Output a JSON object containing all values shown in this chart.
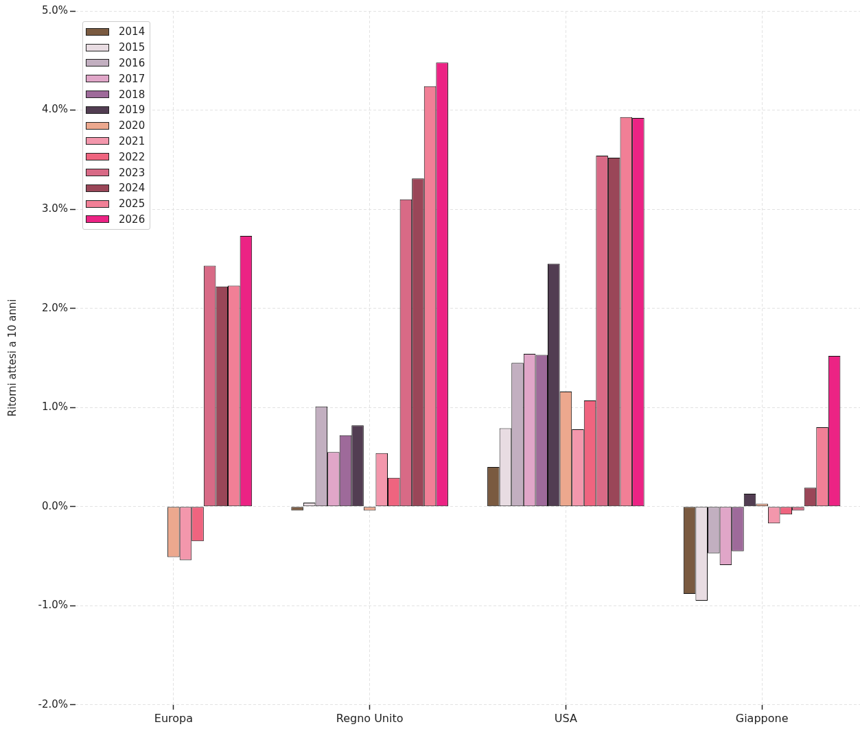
{
  "chart_data": {
    "type": "bar",
    "ylabel": "Ritorni attesi a 10 anni",
    "categories": [
      "Europa",
      "Regno Unito",
      "USA",
      "Giappone"
    ],
    "series": [
      {
        "name": "2014",
        "color": "#7a5a40",
        "values": [
          0,
          -0.04,
          0.4,
          -0.88
        ]
      },
      {
        "name": "2015",
        "color": "#e8dce2",
        "values": [
          0,
          0.04,
          0.79,
          -0.95
        ]
      },
      {
        "name": "2016",
        "color": "#c2afc0",
        "values": [
          0,
          1.01,
          1.45,
          -0.47
        ]
      },
      {
        "name": "2017",
        "color": "#e0a6c8",
        "values": [
          0,
          0.55,
          1.54,
          -0.59
        ]
      },
      {
        "name": "2018",
        "color": "#9e6a9a",
        "values": [
          0,
          0.72,
          1.53,
          -0.45
        ]
      },
      {
        "name": "2019",
        "color": "#523d52",
        "values": [
          0,
          0.82,
          2.45,
          0.13
        ]
      },
      {
        "name": "2020",
        "color": "#eca88e",
        "values": [
          -0.51,
          -0.04,
          1.16,
          0.03
        ]
      },
      {
        "name": "2021",
        "color": "#f397ac",
        "values": [
          -0.54,
          0.54,
          0.78,
          -0.17
        ]
      },
      {
        "name": "2022",
        "color": "#ef647f",
        "values": [
          -0.35,
          0.29,
          1.07,
          -0.08
        ]
      },
      {
        "name": "2023",
        "color": "#d86a86",
        "values": [
          2.43,
          3.1,
          3.54,
          -0.04
        ]
      },
      {
        "name": "2024",
        "color": "#9a4658",
        "values": [
          2.22,
          3.31,
          3.52,
          0.19
        ]
      },
      {
        "name": "2025",
        "color": "#f17f96",
        "values": [
          2.23,
          4.24,
          3.93,
          0.8
        ]
      },
      {
        "name": "2026",
        "color": "#ec2384",
        "values": [
          2.73,
          4.48,
          3.92,
          1.52
        ]
      }
    ],
    "ylim": [
      -2,
      5
    ],
    "yticks": [
      {
        "value": -2,
        "label": "-2.0%"
      },
      {
        "value": -1,
        "label": "-1.0%"
      },
      {
        "value": 0,
        "label": "0.0%"
      },
      {
        "value": 1,
        "label": "1.0%"
      },
      {
        "value": 2,
        "label": "2.0%"
      },
      {
        "value": 3,
        "label": "3.0%"
      },
      {
        "value": 4,
        "label": "4.0%"
      },
      {
        "value": 5,
        "label": "5.0%"
      }
    ],
    "grid": true,
    "legend": "top left"
  }
}
